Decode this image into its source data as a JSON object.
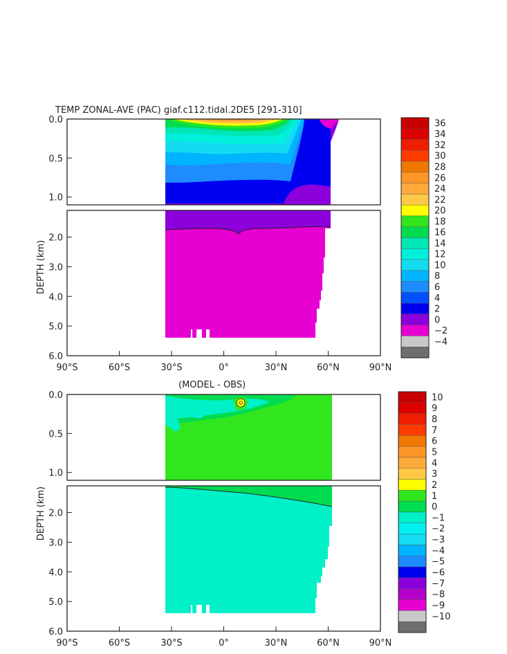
{
  "top": {
    "title": "TEMP ZONAL-AVE (PAC) giaf.c112.tidal.2DE5 [291-310]",
    "y_axis_label": "DEPTH (km)",
    "y_ticks": [
      "0.0",
      "0.5",
      "1.0",
      "2.0",
      "3.0",
      "4.0",
      "5.0",
      "6.0"
    ],
    "x_ticks": [
      "90°S",
      "60°S",
      "30°S",
      "0°",
      "30°N",
      "60°N",
      "90°N"
    ],
    "colorbar_labels": [
      "36",
      "34",
      "32",
      "30",
      "28",
      "26",
      "24",
      "22",
      "20",
      "18",
      "16",
      "14",
      "12",
      "10",
      "8",
      "6",
      "4",
      "2",
      "0",
      "−2",
      "−4"
    ],
    "colorbar_colors": [
      "#c80000",
      "#dc0000",
      "#f01e00",
      "#ff3c00",
      "#f07800",
      "#ff9628",
      "#ffaa3c",
      "#ffc846",
      "#ffff00",
      "#32e61e",
      "#00dc50",
      "#00e6b4",
      "#00f0dc",
      "#14dcf0",
      "#00b4ff",
      "#1e8cff",
      "#0050ff",
      "#0000f0",
      "#8c00dc",
      "#e600d2",
      "#c8c8c8",
      "#6e6e6e"
    ]
  },
  "bottom": {
    "title": "(MODEL - OBS)",
    "y_axis_label": "DEPTH (km)",
    "y_ticks": [
      "0.0",
      "0.5",
      "1.0",
      "2.0",
      "3.0",
      "4.0",
      "5.0",
      "6.0"
    ],
    "x_ticks": [
      "90°S",
      "60°S",
      "30°S",
      "0°",
      "30°N",
      "60°N",
      "90°N"
    ],
    "colorbar_labels": [
      "10",
      "9",
      "8",
      "7",
      "6",
      "5",
      "4",
      "3",
      "2",
      "1",
      "0",
      "−1",
      "−2",
      "−3",
      "−4",
      "−5",
      "−6",
      "−7",
      "−8",
      "−9",
      "−10"
    ],
    "colorbar_colors": [
      "#c80000",
      "#dc0000",
      "#f01e00",
      "#ff3c00",
      "#f07800",
      "#ff9628",
      "#ffaa3c",
      "#ffc846",
      "#ffff00",
      "#32e61e",
      "#00dc50",
      "#00f0c8",
      "#00f0f0",
      "#14dcf0",
      "#00b4ff",
      "#1e8cff",
      "#0000f0",
      "#8c00dc",
      "#b400c8",
      "#e600d2",
      "#c8c8c8",
      "#6e6e6e"
    ]
  },
  "chart_data": [
    {
      "type": "heatmap",
      "title": "TEMP ZONAL-AVE (PAC) giaf.c112.tidal.2DE5 [291-310]",
      "xlabel": "",
      "ylabel": "DEPTH (km)",
      "x_ticks": [
        "90°S",
        "60°S",
        "30°S",
        "0°",
        "30°N",
        "60°N",
        "90°N"
      ],
      "xlim": [
        -90,
        90
      ],
      "ylim": [
        6.0,
        0.0
      ],
      "colorbar_range": [
        -4,
        36
      ],
      "colorbar_step": 2
    },
    {
      "type": "heatmap",
      "title": "(MODEL - OBS)",
      "xlabel": "",
      "ylabel": "DEPTH (km)",
      "x_ticks": [
        "90°S",
        "60°S",
        "30°S",
        "0°",
        "30°N",
        "60°N",
        "90°N"
      ],
      "xlim": [
        -90,
        90
      ],
      "ylim": [
        6.0,
        0.0
      ],
      "colorbar_range": [
        -10,
        10
      ],
      "colorbar_step": 1
    }
  ]
}
